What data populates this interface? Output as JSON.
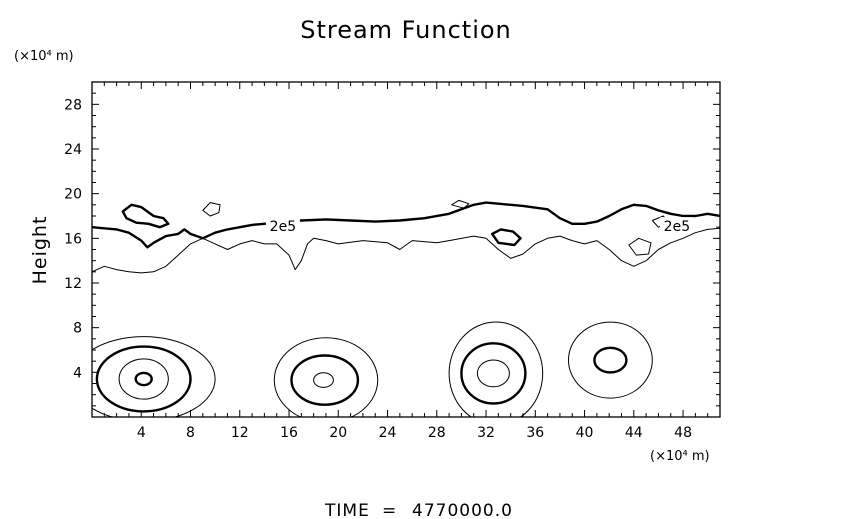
{
  "chart_data": {
    "type": "contour",
    "title": "Stream Function",
    "ylabel": "Height",
    "y_unit_label": "(×10⁴ m)",
    "x_unit_label": "(×10⁴ m)",
    "xlim": [
      0,
      51
    ],
    "ylim": [
      0,
      30
    ],
    "xticks": [
      4,
      8,
      12,
      16,
      20,
      24,
      28,
      32,
      36,
      40,
      44,
      48
    ],
    "yticks": [
      4,
      8,
      12,
      16,
      20,
      24,
      28
    ],
    "contour_labels": [
      {
        "text": "2e5",
        "x": 15.5,
        "y": 17.0
      },
      {
        "text": "2e5",
        "x": 47.5,
        "y": 17.0
      }
    ],
    "upper_contours": [
      {
        "style": "thick",
        "closed": false,
        "points": [
          [
            0,
            17.0
          ],
          [
            2,
            16.8
          ],
          [
            3,
            16.5
          ],
          [
            4,
            15.8
          ],
          [
            4.5,
            15.2
          ],
          [
            5,
            15.6
          ],
          [
            6,
            16.2
          ],
          [
            7,
            16.4
          ],
          [
            7.5,
            16.8
          ],
          [
            8,
            16.4
          ],
          [
            9,
            16.0
          ],
          [
            10,
            16.5
          ],
          [
            11,
            16.8
          ],
          [
            12,
            17.0
          ],
          [
            13,
            17.2
          ],
          [
            14,
            17.3
          ],
          [
            15,
            17.4
          ],
          [
            17,
            17.6
          ],
          [
            19,
            17.7
          ],
          [
            21,
            17.6
          ],
          [
            23,
            17.5
          ],
          [
            25,
            17.6
          ],
          [
            27,
            17.8
          ],
          [
            29,
            18.2
          ],
          [
            30,
            18.6
          ],
          [
            31,
            19.0
          ],
          [
            32,
            19.2
          ],
          [
            33,
            19.1
          ],
          [
            35,
            18.9
          ],
          [
            37,
            18.6
          ],
          [
            38,
            17.8
          ],
          [
            39,
            17.3
          ],
          [
            40,
            17.3
          ],
          [
            41,
            17.5
          ],
          [
            42,
            18.0
          ],
          [
            43,
            18.6
          ],
          [
            44,
            19.0
          ],
          [
            45,
            18.9
          ],
          [
            46,
            18.5
          ],
          [
            47,
            18.2
          ],
          [
            48,
            18.0
          ],
          [
            49,
            18.0
          ],
          [
            50,
            18.2
          ],
          [
            51,
            18.0
          ]
        ]
      },
      {
        "style": "thin",
        "closed": false,
        "points": [
          [
            0,
            13.0
          ],
          [
            1,
            13.5
          ],
          [
            2,
            13.2
          ],
          [
            3,
            13.0
          ],
          [
            4,
            12.9
          ],
          [
            5,
            13.0
          ],
          [
            6,
            13.5
          ],
          [
            7,
            14.5
          ],
          [
            8,
            15.5
          ],
          [
            9,
            16.0
          ],
          [
            10,
            15.5
          ],
          [
            11,
            15.0
          ],
          [
            12,
            15.5
          ],
          [
            13,
            15.8
          ],
          [
            14,
            15.5
          ],
          [
            15,
            15.5
          ],
          [
            16,
            14.5
          ],
          [
            16.5,
            13.2
          ],
          [
            17,
            14.0
          ],
          [
            17.5,
            15.5
          ],
          [
            18,
            16.0
          ],
          [
            19,
            15.8
          ],
          [
            20,
            15.5
          ],
          [
            22,
            15.8
          ],
          [
            24,
            15.6
          ],
          [
            25,
            15.0
          ],
          [
            25.5,
            15.4
          ],
          [
            26,
            15.8
          ],
          [
            28,
            15.6
          ],
          [
            29,
            15.8
          ],
          [
            31,
            16.2
          ],
          [
            32,
            16.0
          ],
          [
            33,
            15.0
          ],
          [
            34,
            14.2
          ],
          [
            35,
            14.6
          ],
          [
            36,
            15.5
          ],
          [
            37,
            16.0
          ],
          [
            38,
            16.2
          ],
          [
            39,
            15.8
          ],
          [
            40,
            15.5
          ],
          [
            41,
            15.8
          ],
          [
            42,
            15.0
          ],
          [
            43,
            14.0
          ],
          [
            44,
            13.5
          ],
          [
            45,
            14.0
          ],
          [
            46,
            15.0
          ],
          [
            47,
            15.6
          ],
          [
            48,
            16.0
          ],
          [
            49,
            16.5
          ],
          [
            50,
            16.8
          ],
          [
            51,
            16.9
          ]
        ]
      },
      {
        "style": "thick",
        "closed": true,
        "points": [
          [
            2.5,
            18.4
          ],
          [
            3.2,
            19.0
          ],
          [
            4.0,
            18.8
          ],
          [
            5.0,
            18.0
          ],
          [
            5.8,
            17.8
          ],
          [
            6.2,
            17.3
          ],
          [
            5.5,
            17.0
          ],
          [
            4.6,
            17.3
          ],
          [
            3.6,
            17.4
          ],
          [
            2.8,
            17.8
          ]
        ]
      },
      {
        "style": "thin",
        "closed": true,
        "points": [
          [
            9.0,
            18.5
          ],
          [
            9.6,
            19.2
          ],
          [
            10.4,
            19.0
          ],
          [
            10.3,
            18.3
          ],
          [
            9.6,
            18.0
          ]
        ]
      },
      {
        "style": "thick",
        "closed": true,
        "points": [
          [
            32.5,
            16.4
          ],
          [
            33.2,
            16.8
          ],
          [
            34.2,
            16.6
          ],
          [
            34.8,
            16.0
          ],
          [
            34.3,
            15.4
          ],
          [
            33.0,
            15.6
          ]
        ]
      },
      {
        "style": "thin",
        "closed": true,
        "points": [
          [
            29.2,
            19.0
          ],
          [
            29.8,
            19.4
          ],
          [
            30.6,
            19.1
          ],
          [
            30.2,
            18.7
          ]
        ]
      },
      {
        "style": "thin",
        "closed": true,
        "points": [
          [
            43.6,
            15.4
          ],
          [
            44.4,
            16.0
          ],
          [
            45.4,
            15.6
          ],
          [
            45.2,
            14.6
          ],
          [
            44.2,
            14.5
          ]
        ]
      },
      {
        "style": "thin",
        "closed": true,
        "points": [
          [
            45.5,
            17.6
          ],
          [
            46.4,
            18.0
          ],
          [
            46.8,
            17.4
          ],
          [
            46.0,
            17.0
          ]
        ]
      }
    ],
    "eddies": [
      {
        "center": [
          4.2,
          3.4
        ],
        "rings": [
          {
            "style": "thick",
            "rx": 0.65,
            "ry": 0.55,
            "dx": 0
          },
          {
            "style": "thin",
            "rx": 2.0,
            "ry": 1.8,
            "dx": 0
          },
          {
            "style": "thick",
            "rx": 3.8,
            "ry": 2.9,
            "dx": 0
          },
          {
            "style": "thin",
            "rx": 5.8,
            "ry": 3.8,
            "dx": 0
          }
        ]
      },
      {
        "center": [
          18.8,
          3.3
        ],
        "rings": [
          {
            "style": "thin",
            "rx": 0.8,
            "ry": 0.65,
            "dx": 0
          },
          {
            "style": "thick",
            "rx": 2.7,
            "ry": 2.2,
            "dx": 0.1
          },
          {
            "style": "thin",
            "rx": 4.2,
            "ry": 3.8,
            "dx": 0.2
          }
        ]
      },
      {
        "center": [
          32.6,
          3.9
        ],
        "rings": [
          {
            "style": "thin",
            "rx": 1.3,
            "ry": 1.2,
            "dx": 0
          },
          {
            "style": "thick",
            "rx": 2.6,
            "ry": 2.7,
            "dx": 0
          },
          {
            "style": "thin",
            "rx": 3.8,
            "ry": 4.6,
            "dx": 0.2
          }
        ]
      },
      {
        "center": [
          42.1,
          5.1
        ],
        "rings": [
          {
            "style": "thick",
            "rx": 1.3,
            "ry": 1.1,
            "dx": 0
          },
          {
            "style": "thin",
            "rx": 3.4,
            "ry": 3.4,
            "dx": 0
          }
        ]
      }
    ]
  },
  "footer": {
    "time_label": "TIME",
    "equals": "=",
    "time_value": "4770000.0"
  }
}
